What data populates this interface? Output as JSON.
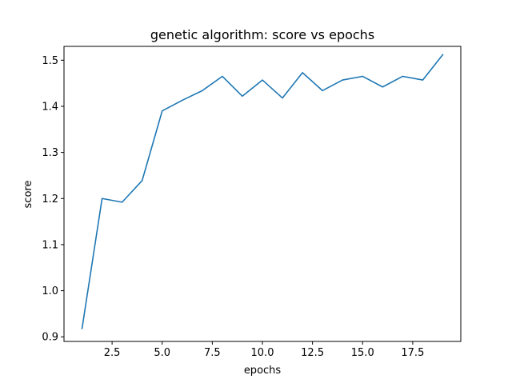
{
  "chart_data": {
    "type": "line",
    "title": "genetic algorithm: score vs epochs",
    "xlabel": "epochs",
    "ylabel": "score",
    "xlim": [
      0.1,
      19.9
    ],
    "ylim": [
      0.89,
      1.53
    ],
    "x_ticks": [
      2.5,
      5.0,
      7.5,
      10.0,
      12.5,
      15.0,
      17.5
    ],
    "x_tick_labels": [
      "2.5",
      "5.0",
      "7.5",
      "10.0",
      "12.5",
      "15.0",
      "17.5"
    ],
    "y_ticks": [
      0.9,
      1.0,
      1.1,
      1.2,
      1.3,
      1.4,
      1.5
    ],
    "y_tick_labels": [
      "0.9",
      "1.0",
      "1.1",
      "1.2",
      "1.3",
      "1.4",
      "1.5"
    ],
    "grid": false,
    "series": [
      {
        "color": "#1f77b4",
        "x": [
          1,
          2,
          3,
          4,
          5,
          6,
          7,
          8,
          9,
          10,
          11,
          12,
          13,
          14,
          15,
          16,
          17,
          18,
          19
        ],
        "y": [
          0.918,
          1.2,
          1.192,
          1.239,
          1.39,
          1.413,
          1.434,
          1.465,
          1.422,
          1.457,
          1.418,
          1.473,
          1.434,
          1.457,
          1.465,
          1.442,
          1.465,
          1.457,
          1.512
        ]
      }
    ]
  }
}
